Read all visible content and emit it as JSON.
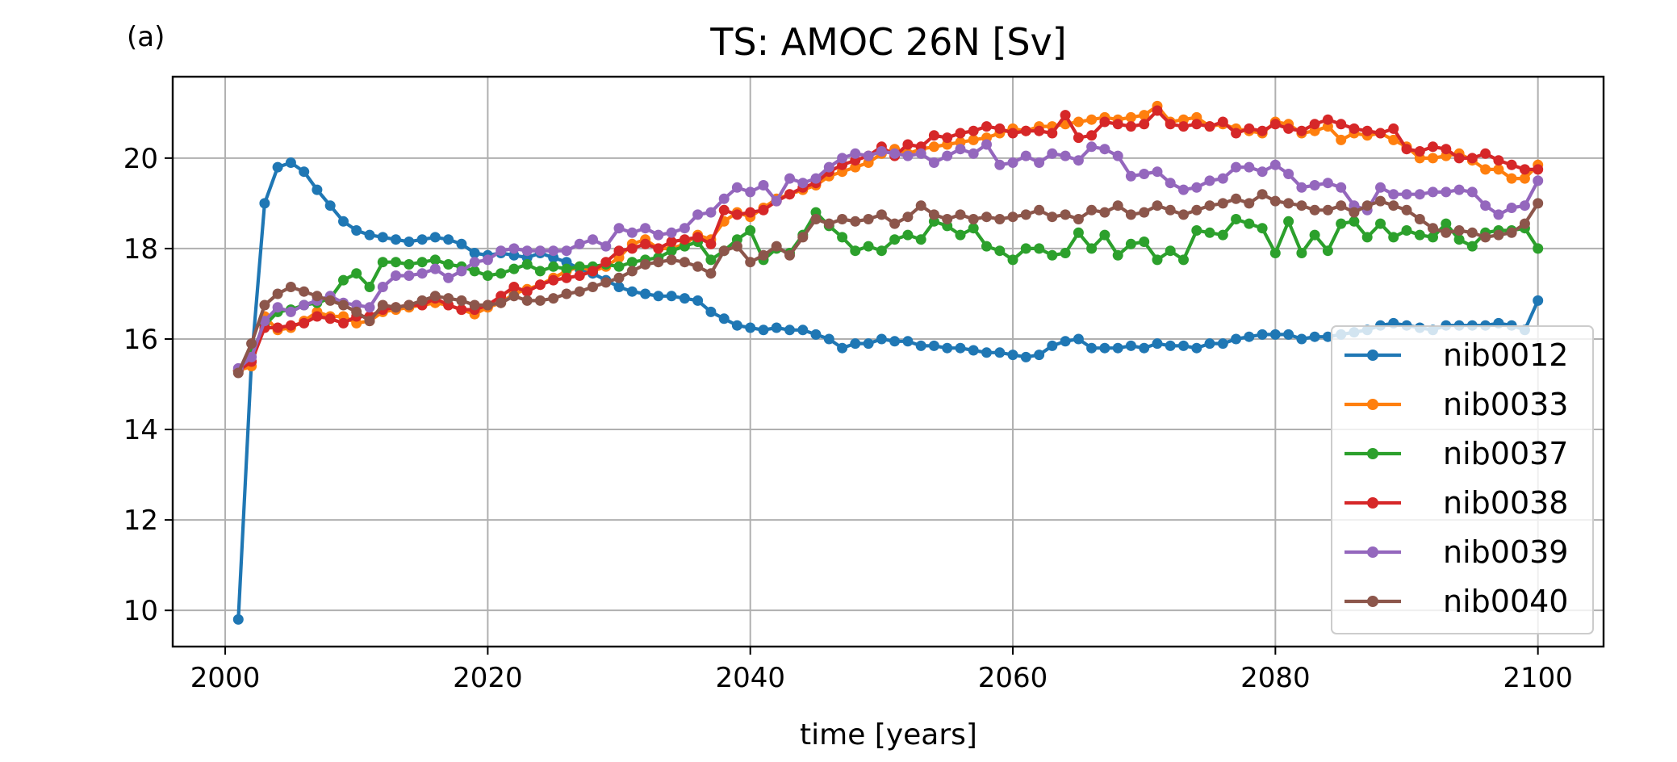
{
  "panel_label": "(a)",
  "chart_data": {
    "type": "line",
    "title": "TS: AMOC 26N [Sv]",
    "xlabel": "time [years]",
    "ylabel": "",
    "xlim": [
      1996,
      2105
    ],
    "ylim": [
      9.2,
      21.8
    ],
    "xticks": [
      2000,
      2020,
      2040,
      2060,
      2080,
      2100
    ],
    "yticks": [
      10,
      12,
      14,
      16,
      18,
      20
    ],
    "grid": true,
    "legend_position": "lower-right",
    "markers": true,
    "x_start": 2001,
    "x_end": 2100,
    "series": [
      {
        "name": "nib0012",
        "color": "#1f77b4",
        "values": [
          9.8,
          15.5,
          19.0,
          19.8,
          19.9,
          19.7,
          19.3,
          18.95,
          18.6,
          18.4,
          18.3,
          18.25,
          18.2,
          18.15,
          18.2,
          18.25,
          18.2,
          18.1,
          17.9,
          17.85,
          17.9,
          17.85,
          17.8,
          17.9,
          17.8,
          17.7,
          17.55,
          17.45,
          17.3,
          17.15,
          17.05,
          17.0,
          16.95,
          16.95,
          16.9,
          16.85,
          16.6,
          16.45,
          16.3,
          16.25,
          16.2,
          16.25,
          16.2,
          16.2,
          16.1,
          16.0,
          15.8,
          15.9,
          15.9,
          16.0,
          15.95,
          15.95,
          15.85,
          15.85,
          15.8,
          15.8,
          15.75,
          15.7,
          15.7,
          15.65,
          15.6,
          15.65,
          15.85,
          15.95,
          16.0,
          15.8,
          15.8,
          15.8,
          15.85,
          15.8,
          15.9,
          15.85,
          15.85,
          15.8,
          15.9,
          15.9,
          16.0,
          16.05,
          16.1,
          16.1,
          16.1,
          16.0,
          16.05,
          16.05,
          16.1,
          16.15,
          16.2,
          16.3,
          16.35,
          16.3,
          16.25,
          16.2,
          16.3,
          16.3,
          16.3,
          16.3,
          16.35,
          16.3,
          16.2,
          16.85
        ]
      },
      {
        "name": "nib0033",
        "color": "#ff7f0e",
        "values": [
          15.3,
          15.4,
          16.5,
          16.2,
          16.25,
          16.4,
          16.6,
          16.5,
          16.5,
          16.35,
          16.4,
          16.6,
          16.65,
          16.7,
          16.75,
          16.8,
          16.75,
          16.65,
          16.55,
          16.7,
          16.8,
          17.0,
          17.1,
          17.2,
          17.35,
          17.5,
          17.6,
          17.5,
          17.6,
          17.8,
          18.1,
          18.2,
          18.0,
          18.0,
          18.1,
          18.3,
          18.2,
          18.6,
          18.8,
          18.7,
          18.9,
          19.1,
          19.2,
          19.3,
          19.4,
          19.6,
          19.7,
          19.8,
          19.9,
          20.1,
          20.2,
          20.1,
          20.2,
          20.25,
          20.3,
          20.35,
          20.4,
          20.45,
          20.55,
          20.65,
          20.6,
          20.7,
          20.7,
          20.75,
          20.8,
          20.85,
          20.9,
          20.85,
          20.9,
          20.95,
          21.15,
          20.8,
          20.85,
          20.9,
          20.7,
          20.75,
          20.65,
          20.6,
          20.55,
          20.8,
          20.75,
          20.55,
          20.6,
          20.7,
          20.4,
          20.55,
          20.5,
          20.55,
          20.4,
          20.25,
          20.0,
          20.0,
          20.05,
          20.1,
          19.95,
          19.75,
          19.75,
          19.55,
          19.55,
          19.85
        ]
      },
      {
        "name": "nib0037",
        "color": "#2ca02c",
        "values": [
          15.3,
          15.7,
          16.3,
          16.6,
          16.65,
          16.75,
          16.8,
          16.9,
          17.3,
          17.45,
          17.15,
          17.7,
          17.7,
          17.65,
          17.7,
          17.75,
          17.65,
          17.6,
          17.5,
          17.4,
          17.45,
          17.55,
          17.65,
          17.5,
          17.6,
          17.55,
          17.6,
          17.6,
          17.65,
          17.6,
          17.7,
          17.75,
          17.8,
          17.95,
          18.05,
          18.15,
          17.75,
          17.95,
          18.2,
          18.4,
          17.75,
          18.0,
          17.9,
          18.3,
          18.8,
          18.5,
          18.25,
          17.95,
          18.05,
          17.95,
          18.2,
          18.3,
          18.2,
          18.6,
          18.5,
          18.3,
          18.45,
          18.05,
          17.95,
          17.75,
          18.0,
          18.0,
          17.85,
          17.9,
          18.35,
          18.0,
          18.3,
          17.85,
          18.1,
          18.15,
          17.75,
          17.95,
          17.75,
          18.4,
          18.35,
          18.3,
          18.65,
          18.55,
          18.45,
          17.9,
          18.6,
          17.9,
          18.3,
          17.95,
          18.55,
          18.6,
          18.25,
          18.55,
          18.25,
          18.4,
          18.3,
          18.25,
          18.55,
          18.2,
          18.05,
          18.35,
          18.4,
          18.4,
          18.45,
          18.0
        ]
      },
      {
        "name": "nib0038",
        "color": "#d62728",
        "values": [
          15.3,
          15.5,
          16.25,
          16.25,
          16.3,
          16.35,
          16.5,
          16.45,
          16.35,
          16.5,
          16.5,
          16.65,
          16.7,
          16.75,
          16.75,
          16.9,
          16.75,
          16.65,
          16.65,
          16.75,
          16.95,
          17.15,
          17.05,
          17.2,
          17.3,
          17.35,
          17.4,
          17.5,
          17.7,
          17.95,
          18.0,
          18.1,
          18.0,
          18.15,
          18.2,
          18.25,
          18.1,
          18.85,
          18.75,
          18.8,
          18.85,
          19.05,
          19.2,
          19.35,
          19.45,
          19.7,
          19.85,
          19.95,
          20.05,
          20.25,
          20.05,
          20.3,
          20.25,
          20.5,
          20.45,
          20.55,
          20.6,
          20.7,
          20.65,
          20.55,
          20.6,
          20.6,
          20.55,
          20.95,
          20.45,
          20.5,
          20.8,
          20.75,
          20.7,
          20.75,
          21.05,
          20.75,
          20.7,
          20.75,
          20.7,
          20.8,
          20.55,
          20.65,
          20.6,
          20.75,
          20.65,
          20.6,
          20.75,
          20.85,
          20.75,
          20.65,
          20.6,
          20.55,
          20.65,
          20.2,
          20.15,
          20.25,
          20.2,
          20.0,
          20.0,
          20.1,
          19.95,
          19.85,
          19.75,
          19.75
        ]
      },
      {
        "name": "nib0039",
        "color": "#9467bd",
        "values": [
          15.35,
          15.6,
          16.4,
          16.7,
          16.6,
          16.75,
          16.85,
          16.95,
          16.8,
          16.75,
          16.7,
          17.15,
          17.4,
          17.4,
          17.45,
          17.55,
          17.35,
          17.5,
          17.7,
          17.75,
          17.95,
          18.0,
          17.95,
          17.95,
          17.95,
          17.95,
          18.1,
          18.2,
          18.05,
          18.45,
          18.35,
          18.45,
          18.3,
          18.35,
          18.45,
          18.75,
          18.8,
          19.1,
          19.35,
          19.25,
          19.4,
          19.05,
          19.55,
          19.45,
          19.55,
          19.8,
          20.0,
          20.1,
          20.05,
          20.15,
          20.1,
          20.05,
          20.1,
          19.9,
          20.05,
          20.2,
          20.1,
          20.3,
          19.85,
          19.9,
          20.05,
          19.9,
          20.1,
          20.05,
          19.95,
          20.25,
          20.2,
          20.05,
          19.6,
          19.65,
          19.7,
          19.45,
          19.3,
          19.35,
          19.5,
          19.55,
          19.8,
          19.8,
          19.7,
          19.85,
          19.65,
          19.35,
          19.4,
          19.45,
          19.35,
          18.95,
          18.85,
          19.35,
          19.2,
          19.2,
          19.2,
          19.25,
          19.25,
          19.3,
          19.25,
          18.95,
          18.75,
          18.9,
          18.95,
          19.5
        ]
      },
      {
        "name": "nib0040",
        "color": "#8c564b",
        "values": [
          15.25,
          15.9,
          16.75,
          17.0,
          17.15,
          17.05,
          16.95,
          16.85,
          16.75,
          16.6,
          16.4,
          16.75,
          16.7,
          16.75,
          16.85,
          16.95,
          16.9,
          16.85,
          16.75,
          16.75,
          16.8,
          16.95,
          16.85,
          16.85,
          16.9,
          17.0,
          17.05,
          17.15,
          17.25,
          17.35,
          17.5,
          17.65,
          17.7,
          17.75,
          17.7,
          17.6,
          17.45,
          17.95,
          18.05,
          17.7,
          17.85,
          18.05,
          17.85,
          18.25,
          18.65,
          18.55,
          18.65,
          18.6,
          18.65,
          18.75,
          18.55,
          18.7,
          18.95,
          18.75,
          18.65,
          18.75,
          18.65,
          18.7,
          18.65,
          18.7,
          18.75,
          18.85,
          18.7,
          18.75,
          18.65,
          18.85,
          18.8,
          18.95,
          18.75,
          18.8,
          18.95,
          18.85,
          18.75,
          18.85,
          18.95,
          19.0,
          19.1,
          19.0,
          19.2,
          19.05,
          19.0,
          18.95,
          18.85,
          18.85,
          18.95,
          18.8,
          18.95,
          19.05,
          18.95,
          18.85,
          18.65,
          18.45,
          18.35,
          18.4,
          18.35,
          18.25,
          18.3,
          18.35,
          18.55,
          19.0
        ]
      }
    ]
  }
}
